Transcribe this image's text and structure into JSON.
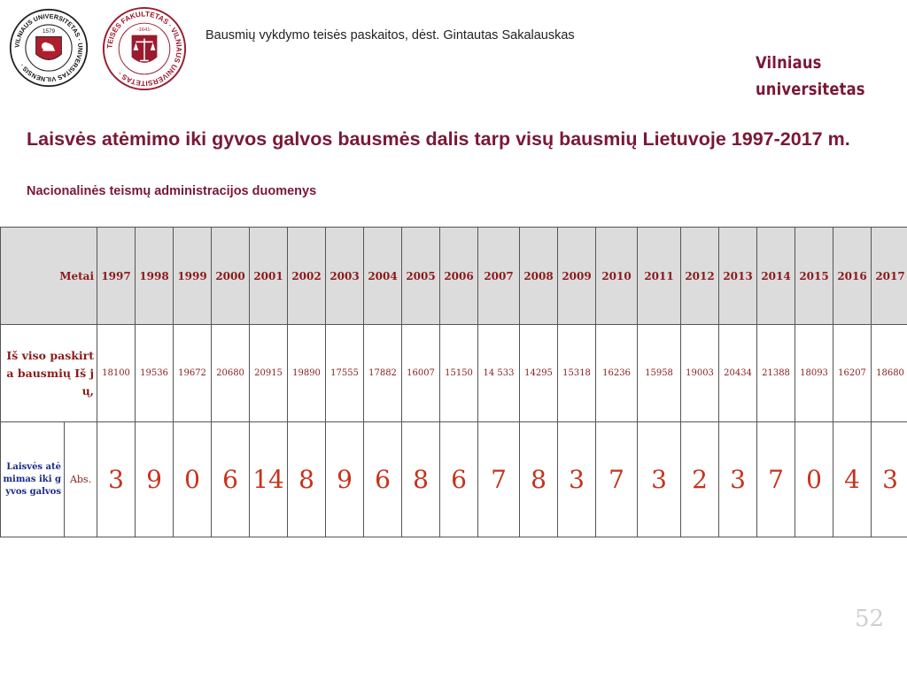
{
  "header": {
    "course_text": "Bausmių vykdymo teisės paskaitos, dėst. Gintautas Sakalauskas",
    "brand_line1": "Vilniaus",
    "brand_line2": "universitetas",
    "logo1_ring_text": "VILNIAUS UNIVERSITETAS · UNIVERSITAS VILNENSIS ·",
    "logo1_year": "1579",
    "logo2_ring_text": "TEISĖS FAKULTETAS · VILNIAUS UNIVERSITETAS ·",
    "logo2_year": "-1641-"
  },
  "slide": {
    "title": "Laisvės atėmimo iki gyvos galvos bausmės dalis tarp visų bausmių Lietuvoje 1997-2017 m.",
    "subtitle": "Nacionalinės teismų administracijos duomenys",
    "page_number": "52"
  },
  "table": {
    "metai_label": "Metai",
    "totals_label": "Iš viso paskirta bausmių Iš jų,",
    "life_label": "Laisvės atėmimas iki gyvos galvos",
    "abs_label": "Abs.",
    "years": [
      "1997",
      "1998",
      "1999",
      "2000",
      "2001",
      "2002",
      "2003",
      "2004",
      "2005",
      "2006",
      "2007",
      "2008",
      "2009",
      "2010",
      "2011",
      "2012",
      "2013",
      "2014",
      "2015",
      "2016",
      "2017"
    ],
    "totals": [
      "18100",
      "19536",
      "19672",
      "20680",
      "20915",
      "19890",
      "17555",
      "17882",
      "16007",
      "15150",
      "14 533",
      "14295",
      "15318",
      "16236",
      "15958",
      "19003",
      "20434",
      "21388",
      "18093",
      "16207",
      "18680"
    ],
    "life": [
      "3",
      "9",
      "0",
      "6",
      "14",
      "8",
      "9",
      "6",
      "8",
      "6",
      "7",
      "8",
      "3",
      "7",
      "3",
      "2",
      "3",
      "7",
      "0",
      "4",
      "3"
    ]
  },
  "colors": {
    "brand": "#7a1836",
    "table_text": "#8b1a1a",
    "value_red": "#c8321c",
    "label_blue": "#1a2a8b",
    "header_bg": "#dcdcdc"
  }
}
